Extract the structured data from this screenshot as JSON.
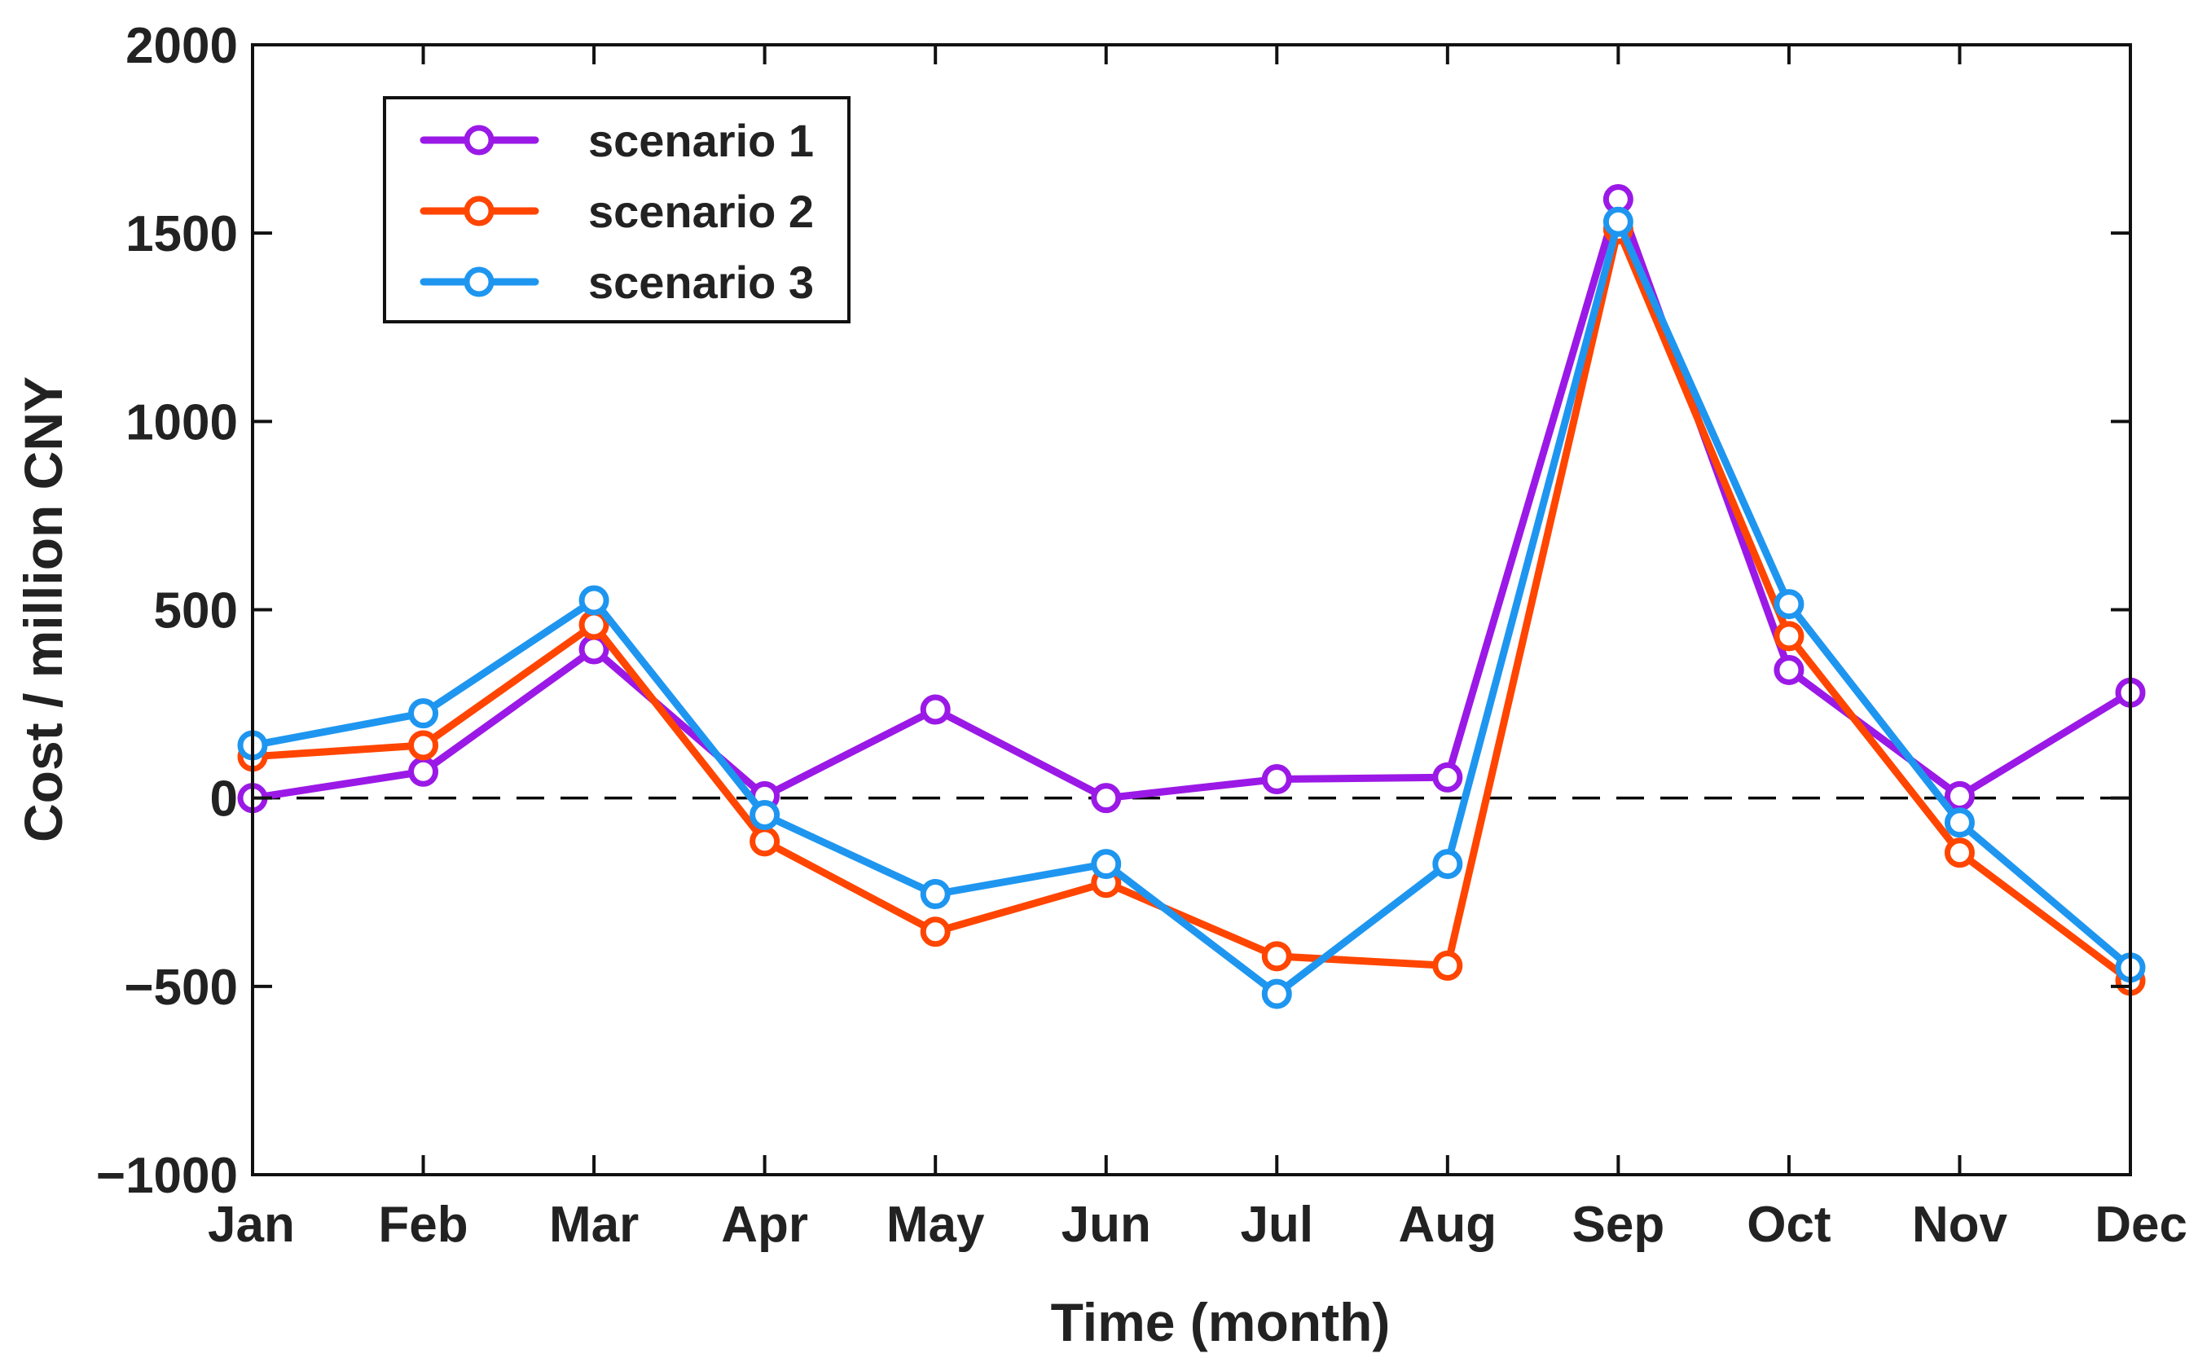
{
  "chart_data": {
    "type": "line",
    "title": "",
    "xlabel": "Time (month)",
    "ylabel": "Cost / million CNY",
    "categories": [
      "Jan",
      "Feb",
      "Mar",
      "Apr",
      "May",
      "Jun",
      "Jul",
      "Aug",
      "Sep",
      "Oct",
      "Nov",
      "Dec"
    ],
    "ylim": [
      -1000,
      2000
    ],
    "yticks": [
      -1000,
      -500,
      0,
      500,
      1000,
      1500,
      2000
    ],
    "ytick_labels": [
      "−1000",
      "−500",
      "0",
      "500",
      "1000",
      "1500",
      "2000"
    ],
    "grid": false,
    "reference_line": {
      "y": 0,
      "style": "dashed",
      "color": "#000000"
    },
    "legend": {
      "position": "top-left"
    },
    "series": [
      {
        "name": "scenario 1",
        "color": "#9b19e6",
        "marker": "circle",
        "values": [
          0,
          70,
          395,
          5,
          235,
          0,
          50,
          55,
          1590,
          340,
          5,
          280
        ]
      },
      {
        "name": "scenario 2",
        "color": "#ff4500",
        "marker": "circle",
        "values": [
          110,
          140,
          460,
          -115,
          -355,
          -225,
          -420,
          -445,
          1510,
          430,
          -145,
          -485
        ]
      },
      {
        "name": "scenario 3",
        "color": "#1e96f0",
        "marker": "circle",
        "values": [
          140,
          225,
          525,
          -45,
          -255,
          -175,
          -520,
          -175,
          1530,
          515,
          -65,
          -450
        ]
      }
    ]
  }
}
